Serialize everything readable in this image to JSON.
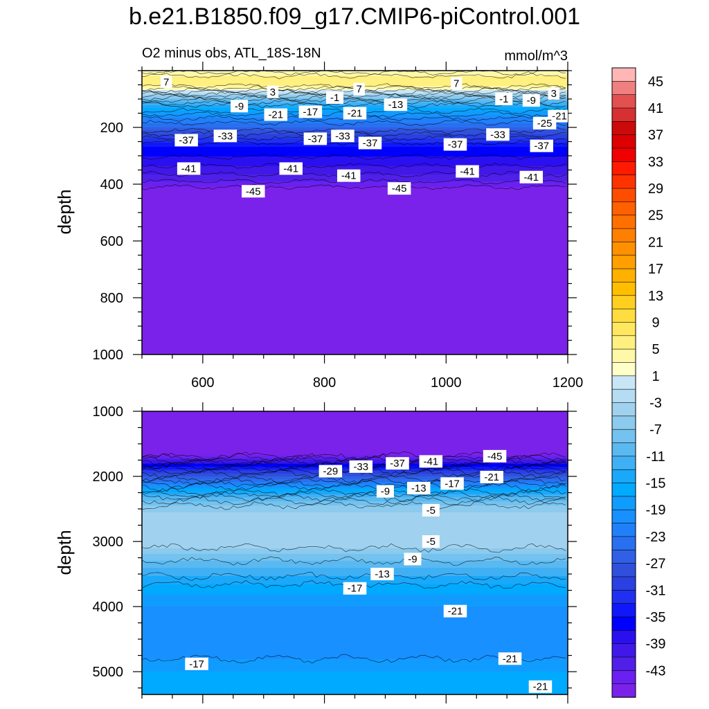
{
  "figure_title": "b.e21.B1850.f09_g17.CMIP6-piControl.001",
  "chart_data": [
    {
      "type": "heatmap",
      "panel": "upper",
      "left_title": "O2 minus obs, ATL_18S-18N",
      "right_title": "mmol/m^3",
      "xlabel": "",
      "ylabel": "depth",
      "xlim": [
        500,
        1200
      ],
      "ylim": [
        1000,
        0
      ],
      "xticks": [
        600,
        800,
        1000,
        1200
      ],
      "yticks": [
        200,
        400,
        600,
        800,
        1000
      ],
      "profile_depth": [
        0,
        25,
        45,
        60,
        80,
        100,
        130,
        160,
        200,
        230,
        270,
        320,
        350,
        380,
        400,
        430,
        1000
      ],
      "profile_value": [
        2,
        6,
        7,
        4,
        -2,
        -8,
        -15,
        -20,
        -25,
        -30,
        -35,
        -38,
        -40,
        -42,
        -44,
        -47,
        -47
      ],
      "contour_labels": [
        {
          "text": "7",
          "x": 540,
          "depth": 40
        },
        {
          "text": "3",
          "x": 715,
          "depth": 75
        },
        {
          "text": "-9",
          "x": 660,
          "depth": 125
        },
        {
          "text": "-21",
          "x": 720,
          "depth": 155
        },
        {
          "text": "-17",
          "x": 777,
          "depth": 145
        },
        {
          "text": "-1",
          "x": 817,
          "depth": 95
        },
        {
          "text": "7",
          "x": 857,
          "depth": 65
        },
        {
          "text": "-21",
          "x": 850,
          "depth": 150
        },
        {
          "text": "-13",
          "x": 917,
          "depth": 120
        },
        {
          "text": "7",
          "x": 1017,
          "depth": 45
        },
        {
          "text": "-1",
          "x": 1095,
          "depth": 100
        },
        {
          "text": "-9",
          "x": 1140,
          "depth": 105
        },
        {
          "text": "3",
          "x": 1177,
          "depth": 80
        },
        {
          "text": "-21",
          "x": 1225,
          "depth": 160
        },
        {
          "text": "-25",
          "x": 1162,
          "depth": 185
        },
        {
          "text": "-37",
          "x": 573,
          "depth": 245
        },
        {
          "text": "-33",
          "x": 637,
          "depth": 230
        },
        {
          "text": "-37",
          "x": 785,
          "depth": 240
        },
        {
          "text": "-33",
          "x": 830,
          "depth": 230
        },
        {
          "text": "-37",
          "x": 875,
          "depth": 255
        },
        {
          "text": "-37",
          "x": 1015,
          "depth": 260
        },
        {
          "text": "-33",
          "x": 1085,
          "depth": 225
        },
        {
          "text": "-37",
          "x": 1157,
          "depth": 265
        },
        {
          "text": "-41",
          "x": 577,
          "depth": 345
        },
        {
          "text": "-41",
          "x": 745,
          "depth": 345
        },
        {
          "text": "-41",
          "x": 840,
          "depth": 370
        },
        {
          "text": "-41",
          "x": 1035,
          "depth": 355
        },
        {
          "text": "-41",
          "x": 1140,
          "depth": 375
        },
        {
          "text": "-45",
          "x": 683,
          "depth": 425
        },
        {
          "text": "-45",
          "x": 923,
          "depth": 415
        }
      ]
    },
    {
      "type": "heatmap",
      "panel": "lower",
      "xlabel": "",
      "ylabel": "depth",
      "xlim": [
        500,
        1200
      ],
      "ylim": [
        5350,
        1000
      ],
      "xticks": [
        600,
        800,
        1000,
        1200
      ],
      "yticks": [
        1000,
        2000,
        3000,
        4000,
        5000
      ],
      "profile_depth": [
        1000,
        1650,
        1700,
        1800,
        1900,
        2000,
        2100,
        2200,
        2300,
        2400,
        2550,
        2800,
        3050,
        3200,
        3400,
        3600,
        3800,
        4000,
        4300,
        4700,
        5000,
        5350
      ],
      "profile_value": [
        -47,
        -47,
        -44,
        -38,
        -32,
        -27,
        -22,
        -17,
        -12,
        -8,
        -5,
        -3.5,
        -4,
        -7,
        -11,
        -14,
        -17,
        -19,
        -21,
        -20,
        -17,
        -15
      ],
      "contour_labels": [
        {
          "text": "-29",
          "x": 810,
          "depth": 1920
        },
        {
          "text": "-33",
          "x": 860,
          "depth": 1850
        },
        {
          "text": "-37",
          "x": 920,
          "depth": 1800
        },
        {
          "text": "-41",
          "x": 975,
          "depth": 1770
        },
        {
          "text": "-45",
          "x": 1080,
          "depth": 1690
        },
        {
          "text": "-21",
          "x": 1075,
          "depth": 2010
        },
        {
          "text": "-17",
          "x": 1010,
          "depth": 2110
        },
        {
          "text": "-13",
          "x": 955,
          "depth": 2180
        },
        {
          "text": "-9",
          "x": 900,
          "depth": 2230
        },
        {
          "text": "-5",
          "x": 975,
          "depth": 2520
        },
        {
          "text": "-5",
          "x": 975,
          "depth": 3000
        },
        {
          "text": "-9",
          "x": 945,
          "depth": 3270
        },
        {
          "text": "-13",
          "x": 895,
          "depth": 3500
        },
        {
          "text": "-17",
          "x": 850,
          "depth": 3720
        },
        {
          "text": "-21",
          "x": 1015,
          "depth": 4070
        },
        {
          "text": "-21",
          "x": 1105,
          "depth": 4800
        },
        {
          "text": "-17",
          "x": 590,
          "depth": 4880
        },
        {
          "text": "-21",
          "x": 1155,
          "depth": 5230
        }
      ]
    }
  ],
  "colorbar": {
    "labels": [
      "45",
      "41",
      "37",
      "33",
      "29",
      "25",
      "21",
      "17",
      "13",
      "9",
      "5",
      "1",
      "-3",
      "-7",
      "-11",
      "-15",
      "-19",
      "-23",
      "-27",
      "-31",
      "-35",
      "-39",
      "-43"
    ],
    "colors": [
      "#ffb6b6",
      "#f08080",
      "#e25050",
      "#d63030",
      "#cd0a0a",
      "#dc0000",
      "#f00000",
      "#ff1a00",
      "#ff3300",
      "#ff4d00",
      "#ff6000",
      "#ff7000",
      "#ff8000",
      "#ff9000",
      "#ffa000",
      "#ffb000",
      "#ffbf00",
      "#ffcf20",
      "#ffdc40",
      "#ffe860",
      "#fff080",
      "#fff8a8",
      "#ffffc8",
      "#c8e6f5",
      "#b4dcf2",
      "#a0d2ef",
      "#8ccaee",
      "#73c2ef",
      "#5ab9f0",
      "#40b0f5",
      "#1aa8fa",
      "#00aaff",
      "#109cff",
      "#1890ff",
      "#2080fa",
      "#2870f0",
      "#3060e6",
      "#3050dc",
      "#2a40e0",
      "#2030f0",
      "#1018fa",
      "#0000ff",
      "#2a10f0",
      "#4018e8",
      "#5020e8",
      "#6a20f0",
      "#7a22ea"
    ]
  }
}
